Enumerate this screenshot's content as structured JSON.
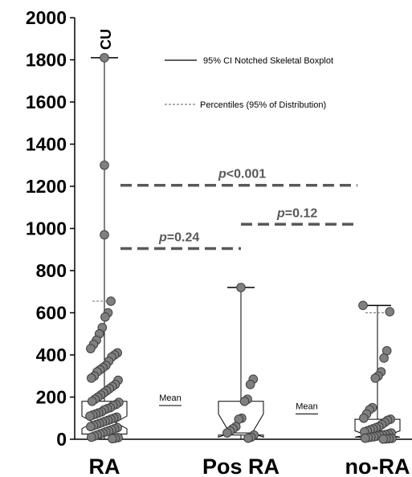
{
  "chart_data": {
    "type": "boxplot",
    "ylim": [
      0,
      2000
    ],
    "yticks": [
      "0",
      "200",
      "400",
      "600",
      "800",
      "1000",
      "1200",
      "1400",
      "1600",
      "1800",
      "2000"
    ],
    "ylabel": "CU",
    "categories": [
      "RA",
      "Pos RA",
      "no-RA"
    ],
    "legend": [
      {
        "label": "95% CI Notched Skeletal Boxplot",
        "style": "solid"
      },
      {
        "label": "Percentiles (95% of Distribution)",
        "style": "dashed"
      }
    ],
    "mean_label": "Mean",
    "groups": [
      {
        "name": "RA",
        "min": 0,
        "q1": 25,
        "median": 80,
        "q3": 180,
        "max": 1810,
        "notch_low": 50,
        "notch_high": 110,
        "p95": 655,
        "mean": 160,
        "points": [
          1810,
          1300,
          970,
          655,
          600,
          580,
          530,
          500,
          470,
          450,
          430,
          410,
          400,
          390,
          370,
          350,
          340,
          330,
          320,
          300,
          290,
          280,
          260,
          250,
          240,
          230,
          220,
          210,
          200,
          190,
          180,
          175,
          165,
          160,
          150,
          145,
          140,
          130,
          125,
          120,
          115,
          110,
          105,
          100,
          95,
          90,
          85,
          80,
          75,
          70,
          65,
          60,
          55,
          50,
          45,
          40,
          35,
          30,
          25,
          20,
          15,
          10,
          8,
          5,
          3
        ]
      },
      {
        "name": "Pos RA",
        "min": 0,
        "q1": 20,
        "median": 30,
        "q3": 180,
        "max": 720,
        "notch_low": 10,
        "notch_high": 120,
        "mean": 120,
        "points": [
          720,
          285,
          260,
          190,
          180,
          100,
          95,
          60,
          50,
          40,
          30,
          20,
          10,
          5
        ]
      },
      {
        "name": "no-RA",
        "min": 0,
        "q1": 10,
        "median": 20,
        "q3": 95,
        "max": 635,
        "notch_low": 10,
        "notch_high": 40,
        "p95": 600,
        "mean": 90,
        "points": [
          635,
          605,
          420,
          385,
          320,
          300,
          290,
          150,
          140,
          120,
          100,
          95,
          90,
          80,
          70,
          60,
          55,
          50,
          45,
          40,
          35,
          30,
          25,
          22,
          20,
          18,
          15,
          12,
          10,
          8,
          5,
          4,
          3,
          2,
          1
        ]
      }
    ],
    "comparisons": [
      {
        "groups": [
          "RA",
          "no-RA"
        ],
        "label_prefix": "p",
        "label_value": "<0.001",
        "y": 1205
      },
      {
        "groups": [
          "Pos RA",
          "no-RA"
        ],
        "label_prefix": "p",
        "label_value": "=0.12",
        "y": 1020
      },
      {
        "groups": [
          "RA",
          "Pos RA"
        ],
        "label_prefix": "p",
        "label_value": "=0.24",
        "y": 905
      }
    ]
  }
}
